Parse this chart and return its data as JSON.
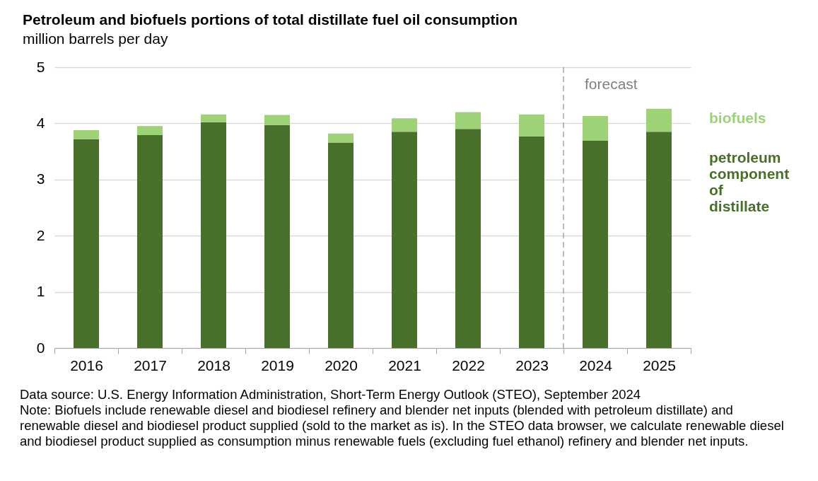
{
  "chart_data": {
    "type": "bar",
    "title": "Petroleum and biofuels portions of total distillate fuel oil consumption",
    "subtitle": "million barrels per day",
    "categories": [
      "2016",
      "2017",
      "2018",
      "2019",
      "2020",
      "2021",
      "2022",
      "2023",
      "2024",
      "2025"
    ],
    "stacked": true,
    "series": [
      {
        "name": "petroleum component of distillate",
        "color": "#48702a",
        "values": [
          3.72,
          3.79,
          4.02,
          3.97,
          3.66,
          3.85,
          3.9,
          3.77,
          3.69,
          3.85
        ]
      },
      {
        "name": "biofuels",
        "color": "#9dd277",
        "values": [
          0.16,
          0.16,
          0.14,
          0.18,
          0.16,
          0.24,
          0.3,
          0.39,
          0.44,
          0.41
        ]
      }
    ],
    "ylim": [
      0,
      5
    ],
    "yticks": [
      0,
      1,
      2,
      3,
      4,
      5
    ],
    "grid": "y",
    "legend": "right",
    "ref_lines": [
      {
        "axis": "x",
        "value": "2024",
        "label": "forecast",
        "color": "#a6a6a6",
        "line_style": "dashed"
      }
    ],
    "annotations": [
      "Data source: U.S. Energy Information Administration, Short-Term Energy Outlook (STEO), September 2024",
      "Note: Biofuels include renewable diesel and biodiesel refinery and blender net inputs (blended with petroleum distillate) and renewable diesel and biodiesel product supplied (sold to the market as is). In the STEO data browser, we calculate renewable diesel and biodiesel product supplied as consumption minus renewable fuels (excluding fuel ethanol) refinery and blender net inputs."
    ]
  }
}
